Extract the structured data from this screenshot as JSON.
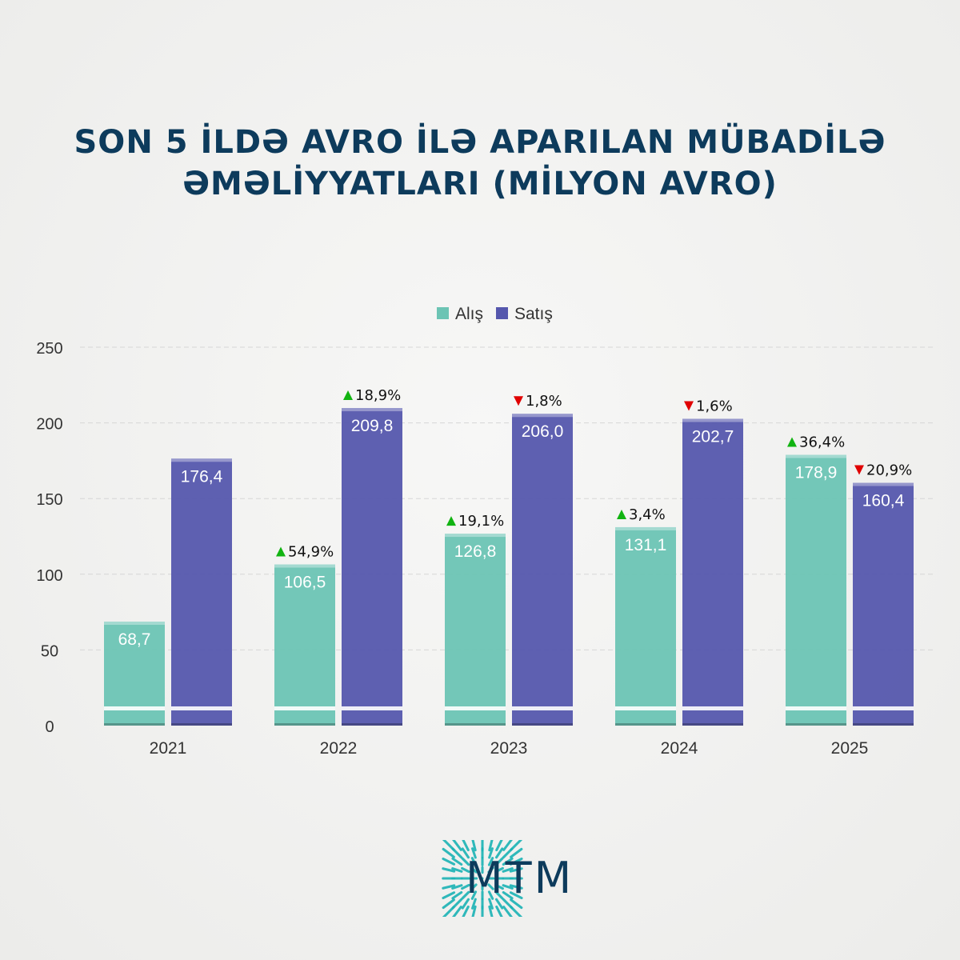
{
  "title_lines": [
    "SON 5 İLDƏ AVRO İLƏ APARILAN MÜBADİLƏ",
    "ƏMƏLİYYATLARI (MİLYON AVRO)"
  ],
  "chart_data": {
    "type": "bar",
    "title": "SON 5 İLDƏ AVRO İLƏ APARILAN MÜBADİLƏ ƏMƏLİYYATLARI (MİLYON AVRO)",
    "categories": [
      "2021",
      "2022",
      "2023",
      "2024",
      "2025"
    ],
    "series": [
      {
        "name": "Alış",
        "color": "#6cc4b4",
        "values": [
          68.7,
          106.5,
          126.8,
          131.1,
          178.9
        ],
        "labels": [
          "68,7",
          "106,5",
          "126,8",
          "131,1",
          "178,9"
        ],
        "changes": [
          null,
          "54,9%",
          "19,1%",
          "3,4%",
          "36,4%"
        ],
        "directions": [
          null,
          "up",
          "up",
          "up",
          "up"
        ]
      },
      {
        "name": "Satış",
        "color": "#5557ad",
        "values": [
          176.4,
          209.8,
          206.0,
          202.7,
          160.4
        ],
        "labels": [
          "176,4",
          "209,8",
          "206,0",
          "202,7",
          "160,4"
        ],
        "changes": [
          null,
          "18,9%",
          "1,8%",
          "1,6%",
          "20,9%"
        ],
        "directions": [
          null,
          "up",
          "down",
          "down",
          "down"
        ]
      }
    ],
    "yticks": [
      "0",
      "50",
      "100",
      "150",
      "200",
      "250"
    ],
    "ylim": [
      0,
      250
    ],
    "grid": true,
    "legend": "top-center",
    "up_color": "#11b311",
    "down_color": "#e00000"
  },
  "logo": {
    "text": "MTM",
    "color": "#1bb3b5"
  }
}
